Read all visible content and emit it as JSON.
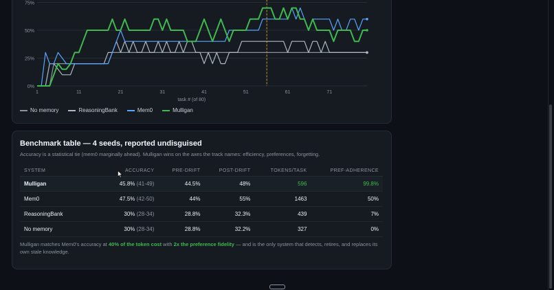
{
  "chart": {
    "ytick_labels": [
      "75%",
      "50%",
      "25%",
      "0%"
    ],
    "xtick_labels": [
      "1",
      "11",
      "21",
      "31",
      "41",
      "51",
      "61",
      "71"
    ],
    "xlabel": "task # (of 80)",
    "marker_color": "#d29922"
  },
  "chart_data": {
    "type": "line",
    "xlabel": "task # (of 80)",
    "ylabel": "",
    "ylim": [
      0,
      75
    ],
    "xlim": [
      1,
      80
    ],
    "grid": true,
    "legend_placement": "bottom-left",
    "vertical_marker_x": 56,
    "x": [
      1,
      2,
      3,
      4,
      5,
      6,
      7,
      8,
      9,
      10,
      11,
      12,
      13,
      14,
      15,
      16,
      17,
      18,
      19,
      20,
      21,
      22,
      23,
      24,
      25,
      26,
      27,
      28,
      29,
      30,
      31,
      32,
      33,
      34,
      35,
      36,
      37,
      38,
      39,
      40,
      41,
      42,
      43,
      44,
      45,
      46,
      47,
      48,
      49,
      50,
      51,
      52,
      53,
      54,
      55,
      56,
      57,
      58,
      59,
      60,
      61,
      62,
      63,
      64,
      65,
      66,
      67,
      68,
      69,
      70,
      71,
      72,
      73,
      74,
      75,
      76,
      77,
      78,
      79,
      80
    ],
    "series": [
      {
        "name": "No memory",
        "color": "#8b949e",
        "values": [
          0,
          0,
          0,
          0,
          20,
          20,
          20,
          20,
          20,
          20,
          20,
          20,
          20,
          20,
          20,
          20,
          20,
          20,
          30,
          30,
          30,
          30,
          30,
          30,
          30,
          30,
          30,
          30,
          30,
          30,
          30,
          30,
          30,
          30,
          30,
          30,
          30,
          30,
          30,
          30,
          30,
          30,
          30,
          30,
          30,
          30,
          30,
          30,
          30,
          30,
          30,
          30,
          30,
          30,
          30,
          30,
          30,
          30,
          30,
          30,
          30,
          30,
          30,
          30,
          30,
          30,
          30,
          30,
          30,
          30,
          30,
          30,
          30,
          30,
          30,
          30,
          30,
          30,
          30,
          30
        ]
      },
      {
        "name": "ReasoningBank",
        "color": "#b1bac4",
        "values": [
          0,
          0,
          0,
          20,
          20,
          15,
          10,
          10,
          10,
          20,
          20,
          20,
          20,
          20,
          20,
          20,
          20,
          30,
          30,
          40,
          30,
          40,
          30,
          40,
          30,
          30,
          40,
          30,
          30,
          40,
          30,
          40,
          30,
          30,
          40,
          30,
          40,
          40,
          30,
          30,
          20,
          30,
          20,
          30,
          20,
          20,
          30,
          30,
          30,
          40,
          40,
          40,
          40,
          40,
          40,
          40,
          40,
          40,
          40,
          40,
          30,
          40,
          40,
          40,
          40,
          30,
          40,
          40,
          30,
          40,
          30,
          30,
          30,
          30,
          30,
          30,
          30,
          30,
          30,
          30
        ]
      },
      {
        "name": "Mem0",
        "color": "#58a6ff",
        "values": [
          0,
          0,
          30,
          20,
          20,
          30,
          25,
          20,
          20,
          20,
          20,
          20,
          20,
          20,
          20,
          20,
          20,
          20,
          30,
          40,
          50,
          40,
          40,
          40,
          40,
          40,
          40,
          40,
          40,
          40,
          40,
          40,
          40,
          40,
          40,
          40,
          40,
          40,
          40,
          40,
          40,
          40,
          40,
          40,
          40,
          40,
          50,
          50,
          50,
          50,
          50,
          50,
          50,
          50,
          60,
          60,
          60,
          60,
          60,
          60,
          60,
          70,
          60,
          70,
          60,
          50,
          60,
          60,
          60,
          60,
          60,
          50,
          60,
          50,
          50,
          60,
          60,
          50,
          60,
          60
        ]
      },
      {
        "name": "Mulligan",
        "color": "#3fb950",
        "values": [
          0,
          0,
          0,
          0,
          10,
          20,
          15,
          15,
          20,
          30,
          30,
          40,
          50,
          50,
          50,
          50,
          50,
          50,
          60,
          50,
          50,
          60,
          50,
          50,
          50,
          50,
          50,
          50,
          60,
          60,
          50,
          60,
          50,
          50,
          50,
          50,
          40,
          40,
          40,
          50,
          60,
          50,
          40,
          50,
          60,
          50,
          40,
          50,
          50,
          50,
          50,
          60,
          60,
          60,
          70,
          70,
          70,
          60,
          60,
          70,
          60,
          70,
          70,
          60,
          60,
          50,
          60,
          50,
          50,
          50,
          50,
          40,
          50,
          50,
          50,
          50,
          40,
          40,
          50,
          50
        ]
      }
    ]
  },
  "legend": [
    {
      "label": "No memory",
      "color": "#8b949e"
    },
    {
      "label": "ReasoningBank",
      "color": "#b1bac4"
    },
    {
      "label": "Mem0",
      "color": "#58a6ff"
    },
    {
      "label": "Mulligan",
      "color": "#3fb950"
    }
  ],
  "benchmark": {
    "title": "Benchmark table — 4 seeds, reported undisguised",
    "subtitle": "Accuracy is a statistical tie (mem0 marginally ahead). Mulligan wins on the axes the track names: efficiency, preferences, forgetting.",
    "columns": [
      "SYSTEM",
      "ACCURACY",
      "PRE-DRIFT",
      "POST-DRIFT",
      "TOKENS/TASK",
      "PREF-ADHERENCE"
    ],
    "rows": [
      {
        "system": "Mulligan",
        "accuracy": "45.8%",
        "ci": "(41-49)",
        "pre": "44.5%",
        "post": "48%",
        "tokens": "596",
        "pref": "99.8%"
      },
      {
        "system": "Mem0",
        "accuracy": "47.5%",
        "ci": "(42-50)",
        "pre": "44%",
        "post": "55%",
        "tokens": "1463",
        "pref": "50%"
      },
      {
        "system": "ReasoningBank",
        "accuracy": "30%",
        "ci": "(28-34)",
        "pre": "28.8%",
        "post": "32.3%",
        "tokens": "439",
        "pref": "7%"
      },
      {
        "system": "No memory",
        "accuracy": "30%",
        "ci": "(28-34)",
        "pre": "28.8%",
        "post": "32.2%",
        "tokens": "327",
        "pref": "0%"
      }
    ],
    "footer": {
      "part1": "Mulligan matches Mem0's accuracy at ",
      "bold1": "40% of the token cost",
      "part2": " with ",
      "bold2": "2x the preference fidelity",
      "part3": " — and is the only system that detects, retires, and replaces its own stale knowledge."
    }
  }
}
